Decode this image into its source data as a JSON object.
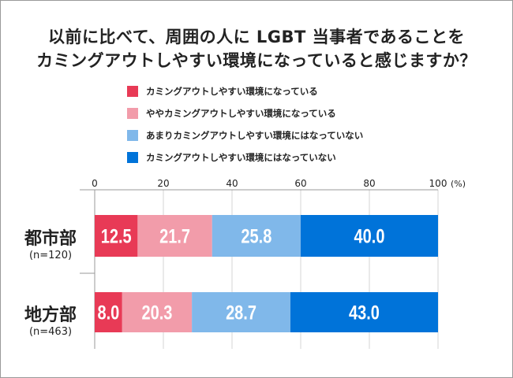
{
  "chart_data": {
    "type": "bar",
    "orientation": "horizontal-stacked",
    "title": [
      "以前に比べて、周囲の人に LGBT 当事者であることを",
      "カミングアウトしやすい環境になっていると感じますか？"
    ],
    "categories": [
      {
        "name": "都市部",
        "count": "(n=120)"
      },
      {
        "name": "地方部",
        "count": "(n=463)"
      }
    ],
    "series": [
      {
        "name": "カミングアウトしやすい環境になっている",
        "color": "#e83a56",
        "values": [
          12.5,
          8.0
        ]
      },
      {
        "name": "ややカミングアウトしやすい環境になっている",
        "color": "#f29caa",
        "values": [
          21.7,
          20.3
        ]
      },
      {
        "name": "あまりカミングアウトしやすい環境にはなっていない",
        "color": "#80b8ea",
        "values": [
          25.8,
          28.7
        ]
      },
      {
        "name": "カミングアウトしやすい環境にはなっていない",
        "color": "#0073d9",
        "values": [
          40.0,
          43.0
        ]
      }
    ],
    "xlim": [
      0,
      100
    ],
    "xticks": [
      "0",
      "20",
      "40",
      "60",
      "80",
      "100"
    ],
    "xunit": "(%)",
    "grid": true,
    "legend": "top"
  }
}
